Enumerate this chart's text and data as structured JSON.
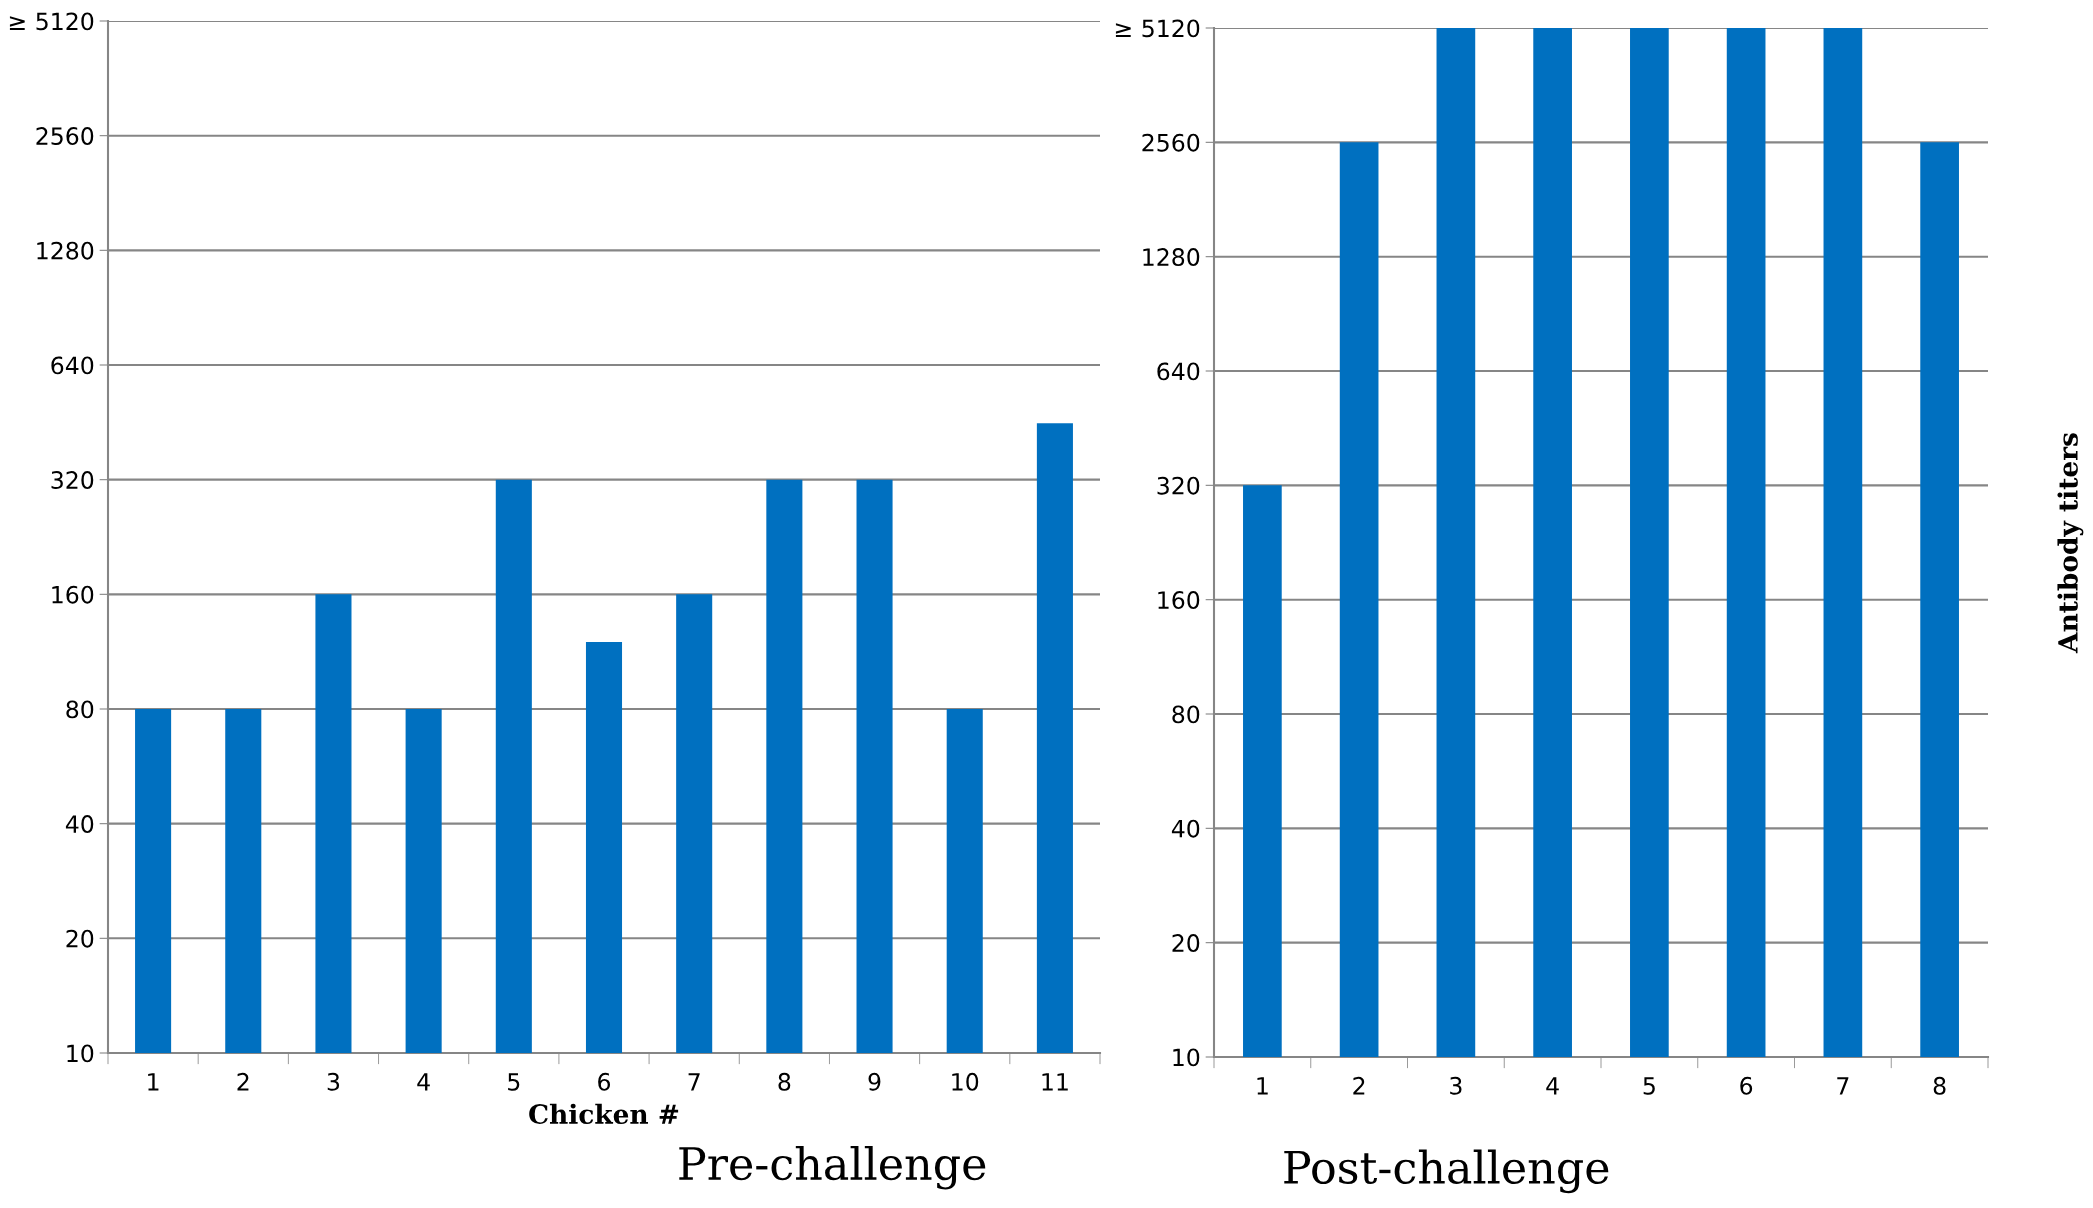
{
  "chart_data": [
    {
      "type": "bar",
      "title": "Pre-challenge",
      "xlabel": "Chicken #",
      "categories": [
        "1",
        "2",
        "3",
        "4",
        "5",
        "6",
        "7",
        "8",
        "9",
        "10",
        "11"
      ],
      "values": [
        80,
        80,
        160,
        80,
        320,
        120,
        160,
        320,
        320,
        80,
        450
      ],
      "color": "#0070c0",
      "log": "y",
      "ylim": [
        10,
        5120
      ],
      "yticks": [
        10,
        20,
        40,
        80,
        160,
        320,
        640,
        1280,
        2560,
        {
          "value": 5120,
          "label": "≥ 5120"
        }
      ],
      "grid": "y"
    },
    {
      "type": "bar",
      "title": "Post-challenge",
      "ylabel": "Antibody titers",
      "categories": [
        "1",
        "2",
        "3",
        "4",
        "5",
        "6",
        "7",
        "8"
      ],
      "values": [
        320,
        2560,
        5120,
        5120,
        5120,
        5120,
        5120,
        2560
      ],
      "color": "#0070c0",
      "log": "y",
      "ylim": [
        10,
        5120
      ],
      "yticks": [
        10,
        20,
        40,
        80,
        160,
        320,
        640,
        1280,
        2560,
        {
          "value": 5120,
          "label": "≥ 5120"
        }
      ],
      "grid": "y"
    }
  ]
}
